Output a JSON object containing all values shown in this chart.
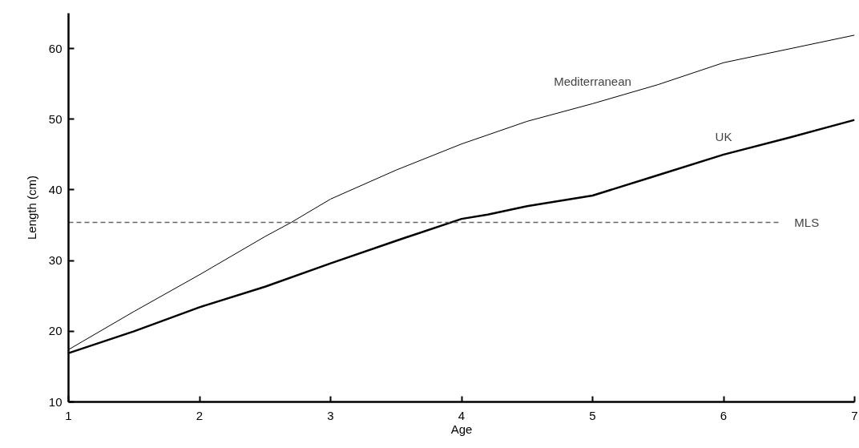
{
  "chart_data": {
    "type": "line",
    "xlabel": "Age",
    "ylabel": "Length (cm)",
    "xlim": [
      1,
      7
    ],
    "ylim": [
      10,
      65
    ],
    "xticks": [
      1,
      2,
      3,
      4,
      5,
      6,
      7
    ],
    "yticks": [
      10,
      20,
      30,
      40,
      50,
      60
    ],
    "grid": false,
    "marker": "none",
    "line_style": "solid",
    "series": [
      {
        "name": "Mediterranean",
        "color": "#000000",
        "x": [
          1,
          1.5,
          2,
          2.5,
          2.7,
          3,
          3.5,
          4,
          4.5,
          5,
          5.5,
          6,
          7
        ],
        "values": [
          17.4,
          22.8,
          28.0,
          33.4,
          35.4,
          38.7,
          42.8,
          46.5,
          49.7,
          52.2,
          54.9,
          58.0,
          61.9
        ]
      },
      {
        "name": "UK",
        "color": "#000000",
        "x": [
          1,
          1.5,
          2,
          2.5,
          3,
          3.5,
          4,
          4.2,
          4.5,
          5,
          5.5,
          6,
          6.5,
          7
        ],
        "values": [
          16.9,
          20.0,
          23.4,
          26.3,
          29.6,
          32.8,
          35.9,
          36.5,
          37.7,
          39.2,
          42.1,
          45.0,
          47.4,
          49.9
        ]
      }
    ],
    "ref_lines": [
      {
        "axis": "y",
        "value": 35.4,
        "label": "MLS",
        "color": "#666666",
        "line_style": "dashed"
      }
    ]
  }
}
